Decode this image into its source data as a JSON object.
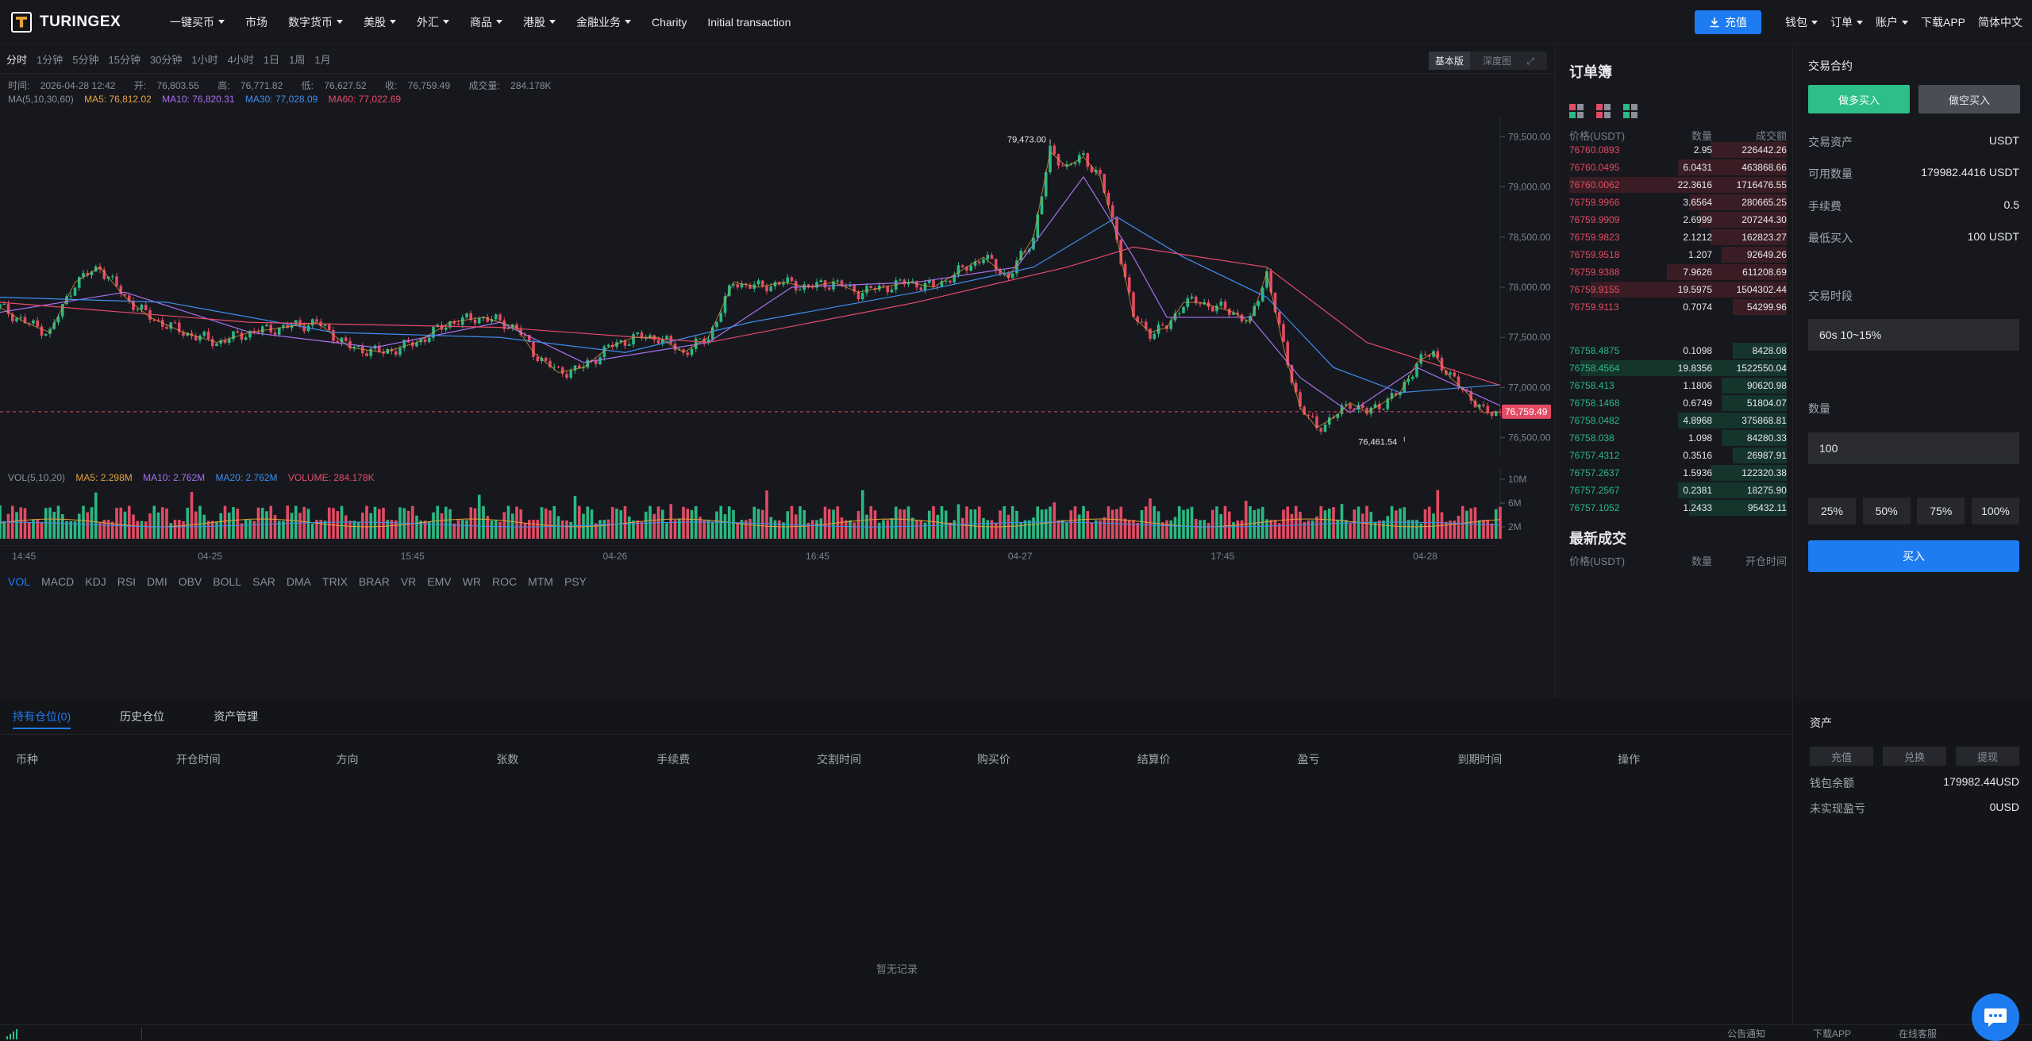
{
  "brand": {
    "name": "TURINGEX"
  },
  "nav": {
    "items": [
      {
        "label": "一键买币",
        "dropdown": true
      },
      {
        "label": "市场",
        "dropdown": false
      },
      {
        "label": "数字货币",
        "dropdown": true
      },
      {
        "label": "美股",
        "dropdown": true
      },
      {
        "label": "外汇",
        "dropdown": true
      },
      {
        "label": "商品",
        "dropdown": true
      },
      {
        "label": "港股",
        "dropdown": true
      },
      {
        "label": "金融业务",
        "dropdown": true
      },
      {
        "label": "Charity",
        "dropdown": false
      },
      {
        "label": "Initial transaction",
        "dropdown": false
      }
    ],
    "deposit": "充值",
    "right_items": [
      "钱包",
      "订单",
      "账户"
    ],
    "download": "下载APP",
    "language": "简体中文"
  },
  "timeframes": {
    "active": "分时",
    "items": [
      "分时",
      "1分钟",
      "5分钟",
      "15分钟",
      "30分钟",
      "1小时",
      "4小时",
      "1日",
      "1周",
      "1月"
    ]
  },
  "view_toggle": {
    "basic": "基本版",
    "depth": "深度图"
  },
  "ohlc": {
    "time_label": "时间:",
    "time": "2026-04-28 12:42",
    "open_label": "开:",
    "open": "76,803.55",
    "high_label": "高:",
    "high": "76,771.82",
    "low_label": "低:",
    "low": "76,627.52",
    "close_label": "收:",
    "close": "76,759.49",
    "volume_label": "成交量:",
    "volume": "284.178K"
  },
  "ma_line": {
    "label": "MA(5,10,30,60)",
    "ma5": "MA5: 76,812.02",
    "ma10": "MA10: 76,820.31",
    "ma30": "MA30: 77,028.09",
    "ma60": "MA60: 77,022.69",
    "colors": {
      "ma5": "#e6a23c",
      "ma10": "#a770ef",
      "ma30": "#3d8ef0",
      "ma60": "#e64b6a"
    }
  },
  "chart_data": {
    "type": "line",
    "y_ticks": [
      "79,500.00",
      "79,000.00",
      "78,500.00",
      "78,000.00",
      "77,500.00",
      "77,000.00",
      "76,500.00"
    ],
    "ylim": [
      76300,
      79700
    ],
    "high_marker": "79,473.00",
    "low_marker": "76,461.54",
    "last_price": "76,759.49",
    "last_price_value": 76759.49,
    "x_ticks": [
      "14:45",
      "04-25",
      "15:45",
      "04-26",
      "16:45",
      "04-27",
      "17:45",
      "04-28"
    ],
    "close_series": [
      {
        "x": 0,
        "y": 77800
      },
      {
        "x": 3,
        "y": 77650
      },
      {
        "x": 6,
        "y": 77550
      },
      {
        "x": 9,
        "y": 78050
      },
      {
        "x": 12,
        "y": 78200
      },
      {
        "x": 15,
        "y": 77900
      },
      {
        "x": 18,
        "y": 77700
      },
      {
        "x": 22,
        "y": 77550
      },
      {
        "x": 26,
        "y": 77450
      },
      {
        "x": 30,
        "y": 77550
      },
      {
        "x": 34,
        "y": 77600
      },
      {
        "x": 38,
        "y": 77650
      },
      {
        "x": 42,
        "y": 77400
      },
      {
        "x": 46,
        "y": 77350
      },
      {
        "x": 50,
        "y": 77450
      },
      {
        "x": 54,
        "y": 77650
      },
      {
        "x": 58,
        "y": 77700
      },
      {
        "x": 62,
        "y": 77600
      },
      {
        "x": 64,
        "y": 77350
      },
      {
        "x": 67,
        "y": 77150
      },
      {
        "x": 70,
        "y": 77200
      },
      {
        "x": 73,
        "y": 77400
      },
      {
        "x": 76,
        "y": 77500
      },
      {
        "x": 79,
        "y": 77500
      },
      {
        "x": 82,
        "y": 77350
      },
      {
        "x": 85,
        "y": 77500
      },
      {
        "x": 88,
        "y": 78050
      },
      {
        "x": 91,
        "y": 78000
      },
      {
        "x": 94,
        "y": 78050
      },
      {
        "x": 97,
        "y": 78000
      },
      {
        "x": 100,
        "y": 78050
      },
      {
        "x": 103,
        "y": 77950
      },
      {
        "x": 106,
        "y": 78000
      },
      {
        "x": 109,
        "y": 78050
      },
      {
        "x": 112,
        "y": 78000
      },
      {
        "x": 115,
        "y": 78150
      },
      {
        "x": 118,
        "y": 78300
      },
      {
        "x": 121,
        "y": 78100
      },
      {
        "x": 124,
        "y": 78500
      },
      {
        "x": 126,
        "y": 79350
      },
      {
        "x": 128,
        "y": 79200
      },
      {
        "x": 130,
        "y": 79300
      },
      {
        "x": 132,
        "y": 79100
      },
      {
        "x": 134,
        "y": 78500
      },
      {
        "x": 136,
        "y": 77700
      },
      {
        "x": 138,
        "y": 77550
      },
      {
        "x": 140,
        "y": 77600
      },
      {
        "x": 142,
        "y": 77850
      },
      {
        "x": 144,
        "y": 77850
      },
      {
        "x": 146,
        "y": 77800
      },
      {
        "x": 148,
        "y": 77750
      },
      {
        "x": 150,
        "y": 77650
      },
      {
        "x": 152,
        "y": 78150
      },
      {
        "x": 154,
        "y": 77400
      },
      {
        "x": 156,
        "y": 76800
      },
      {
        "x": 158,
        "y": 76600
      },
      {
        "x": 160,
        "y": 76700
      },
      {
        "x": 162,
        "y": 76850
      },
      {
        "x": 164,
        "y": 76750
      },
      {
        "x": 166,
        "y": 76850
      },
      {
        "x": 168,
        "y": 76950
      },
      {
        "x": 170,
        "y": 77250
      },
      {
        "x": 172,
        "y": 77350
      },
      {
        "x": 174,
        "y": 77100
      },
      {
        "x": 176,
        "y": 76950
      },
      {
        "x": 178,
        "y": 76750
      },
      {
        "x": 180,
        "y": 76759
      }
    ],
    "ma_series": {
      "ma10": [
        {
          "x": 0,
          "y": 77750
        },
        {
          "x": 15,
          "y": 77950
        },
        {
          "x": 30,
          "y": 77550
        },
        {
          "x": 45,
          "y": 77400
        },
        {
          "x": 60,
          "y": 77650
        },
        {
          "x": 70,
          "y": 77250
        },
        {
          "x": 85,
          "y": 77450
        },
        {
          "x": 95,
          "y": 78000
        },
        {
          "x": 110,
          "y": 78050
        },
        {
          "x": 122,
          "y": 78200
        },
        {
          "x": 130,
          "y": 79100
        },
        {
          "x": 136,
          "y": 78300
        },
        {
          "x": 140,
          "y": 77700
        },
        {
          "x": 150,
          "y": 77700
        },
        {
          "x": 156,
          "y": 77100
        },
        {
          "x": 162,
          "y": 76750
        },
        {
          "x": 170,
          "y": 77200
        },
        {
          "x": 180,
          "y": 76820
        }
      ],
      "ma30": [
        {
          "x": 0,
          "y": 77900
        },
        {
          "x": 20,
          "y": 77850
        },
        {
          "x": 40,
          "y": 77550
        },
        {
          "x": 60,
          "y": 77500
        },
        {
          "x": 75,
          "y": 77350
        },
        {
          "x": 90,
          "y": 77650
        },
        {
          "x": 110,
          "y": 77950
        },
        {
          "x": 124,
          "y": 78200
        },
        {
          "x": 134,
          "y": 78700
        },
        {
          "x": 142,
          "y": 78300
        },
        {
          "x": 152,
          "y": 77900
        },
        {
          "x": 160,
          "y": 77200
        },
        {
          "x": 168,
          "y": 76950
        },
        {
          "x": 180,
          "y": 77028
        }
      ],
      "ma60": [
        {
          "x": 0,
          "y": 77850
        },
        {
          "x": 30,
          "y": 77650
        },
        {
          "x": 60,
          "y": 77600
        },
        {
          "x": 85,
          "y": 77450
        },
        {
          "x": 110,
          "y": 77850
        },
        {
          "x": 128,
          "y": 78200
        },
        {
          "x": 136,
          "y": 78400
        },
        {
          "x": 152,
          "y": 78200
        },
        {
          "x": 164,
          "y": 77450
        },
        {
          "x": 180,
          "y": 77022
        }
      ]
    }
  },
  "volume": {
    "label": "VOL(5,10,20)",
    "ma5": "MA5: 2.298M",
    "ma10": "MA10: 2.762M",
    "ma20": "MA20: 2.762M",
    "vol": "VOLUME: 284.178K",
    "y_ticks": [
      "10M",
      "6M",
      "2M"
    ]
  },
  "indicators": {
    "active": "VOL",
    "items": [
      "VOL",
      "MACD",
      "KDJ",
      "RSI",
      "DMI",
      "OBV",
      "BOLL",
      "SAR",
      "DMA",
      "TRIX",
      "BRAR",
      "VR",
      "EMV",
      "WR",
      "ROC",
      "MTM",
      "PSY"
    ]
  },
  "orderbook": {
    "title": "订单簿",
    "headers": [
      "价格(USDT)",
      "数量",
      "成交额"
    ],
    "asks": [
      {
        "price": "76760.0893",
        "qty": "2.95",
        "total": "226442.26",
        "depth": 0.35
      },
      {
        "price": "76760.0495",
        "qty": "6.0431",
        "total": "463868.66",
        "depth": 0.5
      },
      {
        "price": "76760.0062",
        "qty": "22.3616",
        "total": "1716476.55",
        "depth": 1.0
      },
      {
        "price": "76759.9966",
        "qty": "3.6564",
        "total": "280665.25",
        "depth": 0.45
      },
      {
        "price": "76759.9909",
        "qty": "2.6999",
        "total": "207244.30",
        "depth": 0.4
      },
      {
        "price": "76759.9823",
        "qty": "2.1212",
        "total": "162823.27",
        "depth": 0.35
      },
      {
        "price": "76759.9518",
        "qty": "1.207",
        "total": "92649.26",
        "depth": 0.3
      },
      {
        "price": "76759.9388",
        "qty": "7.9626",
        "total": "611208.69",
        "depth": 0.55
      },
      {
        "price": "76759.9155",
        "qty": "19.5975",
        "total": "1504302.44",
        "depth": 0.9
      },
      {
        "price": "76759.9113",
        "qty": "0.7074",
        "total": "54299.96",
        "depth": 0.25
      }
    ],
    "bids": [
      {
        "price": "76758.4875",
        "qty": "0.1098",
        "total": "8428.08",
        "depth": 0.25
      },
      {
        "price": "76758.4564",
        "qty": "19.8356",
        "total": "1522550.04",
        "depth": 0.95
      },
      {
        "price": "76758.413",
        "qty": "1.1806",
        "total": "90620.98",
        "depth": 0.3
      },
      {
        "price": "76758.1468",
        "qty": "0.6749",
        "total": "51804.07",
        "depth": 0.3
      },
      {
        "price": "76758.0482",
        "qty": "4.8968",
        "total": "375868.81",
        "depth": 0.5
      },
      {
        "price": "76758.038",
        "qty": "1.098",
        "total": "84280.33",
        "depth": 0.3
      },
      {
        "price": "76757.4312",
        "qty": "0.3516",
        "total": "26987.91",
        "depth": 0.25
      },
      {
        "price": "76757.2637",
        "qty": "1.5936",
        "total": "122320.38",
        "depth": 0.35
      },
      {
        "price": "76757.2567",
        "qty": "0.2381",
        "total": "18275.90",
        "depth": 0.5
      },
      {
        "price": "76757.1052",
        "qty": "1.2433",
        "total": "95432.11",
        "depth": 0.45
      }
    ]
  },
  "latest_trades": {
    "title": "最新成交",
    "headers": [
      "价格(USDT)",
      "数量",
      "开仓时间"
    ]
  },
  "trade_panel": {
    "title": "交易合约",
    "long": "做多买入",
    "short": "做空买入",
    "asset_label": "交易资产",
    "asset_value": "USDT",
    "available_label": "可用数量",
    "available_value": "179982.4416 USDT",
    "fee_label": "手续费",
    "fee_value": "0.5",
    "min_label": "最低买入",
    "min_value": "100 USDT",
    "period_label": "交易时段",
    "period_value": "60s 10~15%",
    "qty_label": "数量",
    "qty_value": "100",
    "percents": [
      "25%",
      "50%",
      "75%",
      "100%"
    ],
    "buy": "买入"
  },
  "positions": {
    "tabs": [
      "持有仓位(0)",
      "历史仓位",
      "资产管理"
    ],
    "columns": [
      "币种",
      "开仓时间",
      "方向",
      "张数",
      "手续费",
      "交割时间",
      "购买价",
      "结算价",
      "盈亏",
      "到期时间",
      "操作"
    ],
    "empty": "暂无记录"
  },
  "assets": {
    "title": "资产",
    "buttons": [
      "充值",
      "兑换",
      "提现"
    ],
    "wallet_label": "钱包余额",
    "wallet_value": "179982.44USD",
    "pnl_label": "未实现盈亏",
    "pnl_value": "0USD"
  },
  "statusbar": {
    "links": [
      "公告通知",
      "下载APP",
      "在线客服"
    ]
  }
}
